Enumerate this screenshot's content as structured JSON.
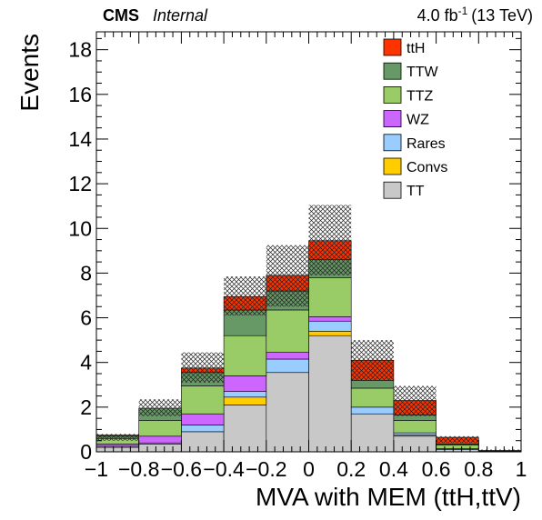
{
  "header": {
    "experiment": "CMS",
    "status": "Internal",
    "lumi_value": "4.0 fb",
    "lumi_exp": "-1",
    "lumi_energy": "(13 TeV)"
  },
  "chart_data": {
    "type": "bar",
    "stacked": true,
    "bin_edges": [
      -1.0,
      -0.8,
      -0.6,
      -0.4,
      -0.2,
      0.0,
      0.2,
      0.4,
      0.6,
      0.8,
      1.0
    ],
    "xlabel": "MVA with MEM (ttH,ttV)",
    "ylabel": "Events",
    "xlim": [
      -1,
      1
    ],
    "ylim": [
      0,
      18.8
    ],
    "x_ticks": [
      "−1",
      "−0.8",
      "−0.6",
      "−0.4",
      "−0.2",
      "0",
      "0.2",
      "0.4",
      "0.6",
      "0.8",
      "1"
    ],
    "y_ticks": [
      "0",
      "2",
      "4",
      "6",
      "8",
      "10",
      "12",
      "14",
      "16",
      "18"
    ],
    "legend_position": "top-right",
    "series": [
      {
        "name": "TT",
        "color": "#c8c8c8",
        "values": [
          0.2,
          0.35,
          0.9,
          2.1,
          3.55,
          5.2,
          1.7,
          0.7,
          0.1,
          0.02
        ]
      },
      {
        "name": "Convs",
        "color": "#ffcc00",
        "values": [
          0.0,
          0.0,
          0.0,
          0.35,
          0.0,
          0.2,
          0.0,
          0.05,
          0.0,
          0.0
        ]
      },
      {
        "name": "Rares",
        "color": "#99ccff",
        "values": [
          0.05,
          0.05,
          0.3,
          0.25,
          0.6,
          0.45,
          0.3,
          0.1,
          0.05,
          0.0
        ]
      },
      {
        "name": "WZ",
        "color": "#cc66ff",
        "values": [
          0.1,
          0.3,
          0.5,
          0.7,
          0.3,
          0.2,
          0.0,
          0.0,
          0.0,
          0.0
        ]
      },
      {
        "name": "TTZ",
        "color": "#99cc66",
        "values": [
          0.25,
          0.7,
          1.25,
          1.8,
          1.9,
          1.75,
          0.85,
          0.55,
          0.15,
          0.03
        ]
      },
      {
        "name": "TTW",
        "color": "#669966",
        "values": [
          0.1,
          0.55,
          0.6,
          1.15,
          0.85,
          0.8,
          0.35,
          0.25,
          0.05,
          0.0
        ]
      },
      {
        "name": "ttH",
        "color": "#ff3300",
        "values": [
          0.05,
          0.0,
          0.2,
          0.6,
          0.7,
          0.85,
          0.9,
          0.65,
          0.3,
          0.01
        ]
      }
    ],
    "uncertainty_upper": [
      0.8,
      2.35,
      4.45,
      7.85,
      9.25,
      11.05,
      5.0,
      2.95,
      0.7,
      0.1
    ],
    "uncertainty_lower": [
      0.5,
      1.6,
      3.1,
      6.1,
      6.5,
      7.9,
      3.2,
      1.6,
      0.4,
      0.05
    ],
    "legend": [
      {
        "label": "ttH",
        "color": "#ff3300"
      },
      {
        "label": "TTW",
        "color": "#669966"
      },
      {
        "label": "TTZ",
        "color": "#99cc66"
      },
      {
        "label": "WZ",
        "color": "#cc66ff"
      },
      {
        "label": "Rares",
        "color": "#99ccff"
      },
      {
        "label": "Convs",
        "color": "#ffcc00"
      },
      {
        "label": "TT",
        "color": "#c8c8c8"
      }
    ]
  }
}
